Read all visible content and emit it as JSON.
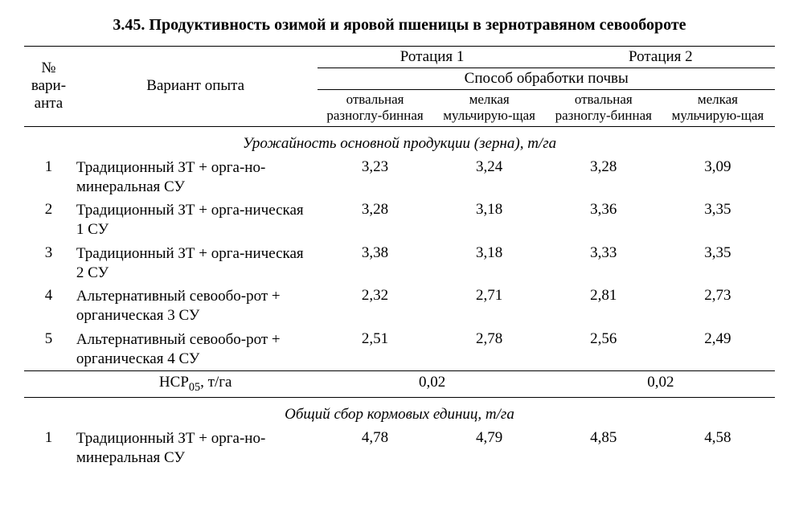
{
  "title": "3.45. Продуктивность озимой и яровой пшеницы в зернотравяном севообороте",
  "header": {
    "num": "№ вари-анта",
    "desc": "Вариант опыта",
    "rot1": "Ротация 1",
    "rot2": "Ротация 2",
    "method": "Способ обработки почвы",
    "sub_a": "отвальная разноглу-бинная",
    "sub_b": "мелкая мульчирую-щая"
  },
  "section1": {
    "title": "Урожайность основной продукции (зерна), т/га",
    "rows": [
      {
        "n": "1",
        "desc": "Традиционный ЗТ + орга-но-минеральная СУ",
        "v": [
          "3,23",
          "3,24",
          "3,28",
          "3,09"
        ]
      },
      {
        "n": "2",
        "desc": "Традиционный ЗТ + орга-ническая 1 СУ",
        "v": [
          "3,28",
          "3,18",
          "3,36",
          "3,35"
        ]
      },
      {
        "n": "3",
        "desc": "Традиционный ЗТ + орга-ническая 2 СУ",
        "v": [
          "3,38",
          "3,18",
          "3,33",
          "3,35"
        ]
      },
      {
        "n": "4",
        "desc": "Альтернативный севообо-рот + органическая 3 СУ",
        "v": [
          "2,32",
          "2,71",
          "2,81",
          "2,73"
        ]
      },
      {
        "n": "5",
        "desc": "Альтернативный севообо-рот + органическая 4 СУ",
        "v": [
          "2,51",
          "2,78",
          "2,56",
          "2,49"
        ]
      }
    ],
    "hcp_label_prefix": "НСР",
    "hcp_label_sub": "05",
    "hcp_label_suffix": ", т/га",
    "hcp_v1": "0,02",
    "hcp_v2": "0,02"
  },
  "section2": {
    "title": "Общий сбор кормовых единиц, т/га",
    "rows": [
      {
        "n": "1",
        "desc": "Традиционный ЗТ + орга-но-минеральная СУ",
        "v": [
          "4,78",
          "4,79",
          "4,85",
          "4,58"
        ]
      }
    ]
  }
}
